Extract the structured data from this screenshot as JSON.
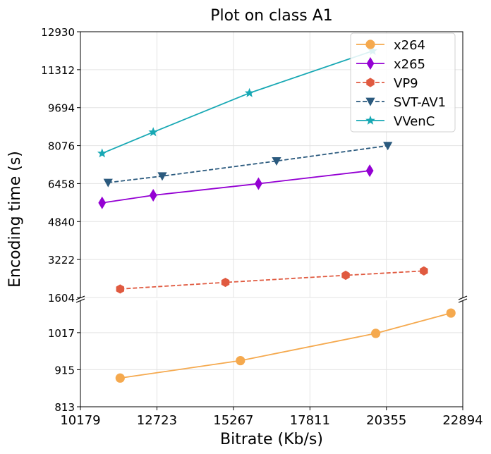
{
  "chart_data": {
    "type": "line",
    "title": "Plot on class A1",
    "xlabel": "Bitrate (Kb/s)",
    "ylabel": "Encoding time (s)",
    "xlim": [
      10179,
      22894
    ],
    "x_ticks": [
      "10179",
      "12723",
      "15267",
      "17811",
      "20355",
      "22894"
    ],
    "y_upper_ticks": [
      "1604",
      "3222",
      "4840",
      "6458",
      "8076",
      "9694",
      "11312",
      "12930"
    ],
    "y_lower_ticks": [
      "813",
      "915",
      "1017"
    ],
    "ylim_upper": [
      1604,
      12930
    ],
    "ylim_lower": [
      813,
      1106
    ],
    "broken_y_axis": true,
    "grid": true,
    "legend_position": "top-right",
    "series": [
      {
        "name": "x264",
        "color": "#f5a94e",
        "marker": "circle",
        "dash": "solid",
        "panel": "lower",
        "x": [
          11500,
          15500,
          20000,
          22500
        ],
        "y": [
          892,
          940,
          1015,
          1071
        ]
      },
      {
        "name": "x265",
        "color": "#9400d3",
        "marker": "diamond",
        "dash": "solid",
        "panel": "upper",
        "x": [
          10900,
          12600,
          16100,
          19800
        ],
        "y": [
          5638,
          5960,
          6454,
          7007
        ]
      },
      {
        "name": "VP9",
        "color": "#e05a40",
        "marker": "hexagon",
        "dash": "dashed",
        "panel": "upper",
        "x": [
          11500,
          15000,
          19000,
          21600
        ],
        "y": [
          1966,
          2248,
          2550,
          2736
        ]
      },
      {
        "name": "SVT-AV1",
        "color": "#2b5a7e",
        "marker": "triangle-down",
        "dash": "dashed",
        "panel": "upper",
        "x": [
          11100,
          12900,
          16700,
          20400
        ],
        "y": [
          6501,
          6777,
          7420,
          8073
        ]
      },
      {
        "name": "VVenC",
        "color": "#17a8b4",
        "marker": "star",
        "dash": "solid",
        "panel": "upper",
        "x": [
          10900,
          12600,
          15800,
          19900
        ],
        "y": [
          7747,
          8651,
          10318,
          12112
        ]
      }
    ]
  }
}
